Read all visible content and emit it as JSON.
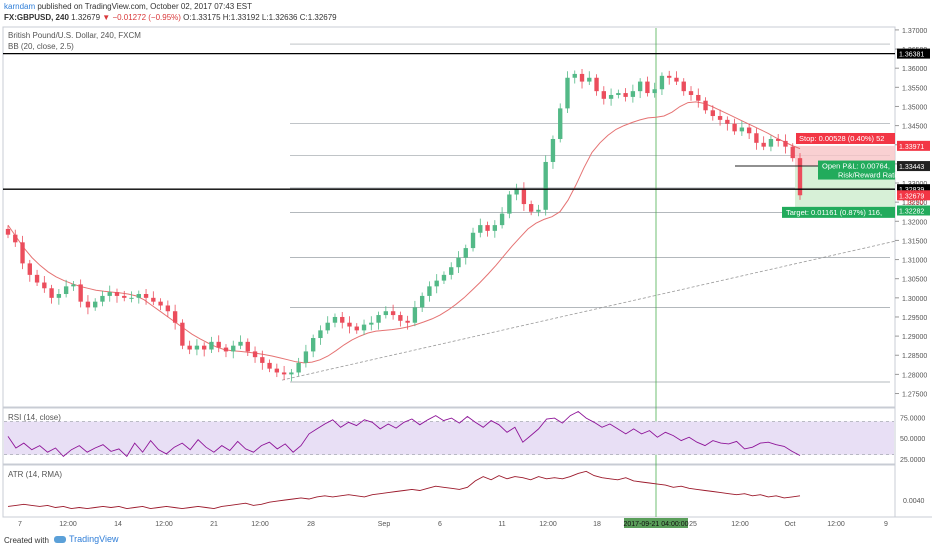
{
  "header": {
    "username": "karndam",
    "published_text": " published on TradingView.com, October 02, 2017 07:43 EST",
    "symbol": "FX:GBPUSD, 240",
    "last": "1.32679",
    "change": "▼ −0.01272 (−0.95%)",
    "ohlc": "O:1.33175 H:1.33192 L:1.32636 C:1.32679"
  },
  "chart_data": {
    "type": "candlestick",
    "title": "British Pound/U.S. Dollar, 240, FXCM",
    "indicator_label": "BB (20, close, 2.5)",
    "ylim": [
      1.272,
      1.3705
    ],
    "y_ticks": [
      "1.37000",
      "1.36500",
      "1.36000",
      "1.35500",
      "1.35000",
      "1.34500",
      "1.34000",
      "1.33500",
      "1.33000",
      "1.32500",
      "1.32000",
      "1.31500",
      "1.31000",
      "1.30500",
      "1.30000",
      "1.29500",
      "1.29000",
      "1.28500",
      "1.28000",
      "1.27500"
    ],
    "x_ticks": [
      "7",
      "12:00",
      "14",
      "12:00",
      "21",
      "12:00",
      "28",
      "Sep",
      "6",
      "11",
      "12:00",
      "18",
      "25",
      "12:00",
      "Oct",
      "12:00",
      "9"
    ],
    "close_path": [
      1.3165,
      1.3145,
      1.309,
      1.306,
      1.304,
      1.3025,
      1.3,
      1.301,
      1.303,
      1.3035,
      1.299,
      1.2975,
      1.299,
      1.3005,
      1.3015,
      1.3005,
      1.3,
      1.3,
      1.301,
      1.3,
      1.299,
      1.298,
      1.2965,
      1.2935,
      1.2875,
      1.2865,
      1.2875,
      1.2865,
      1.2885,
      1.287,
      1.286,
      1.2875,
      1.2885,
      1.286,
      1.2845,
      1.283,
      1.2815,
      1.2805,
      1.28,
      1.2805,
      1.283,
      1.286,
      1.2895,
      1.2915,
      1.2935,
      1.295,
      1.2935,
      1.2925,
      1.2915,
      1.293,
      1.2935,
      1.2955,
      1.2965,
      1.2955,
      1.294,
      1.2935,
      1.2975,
      1.3005,
      1.303,
      1.3045,
      1.306,
      1.308,
      1.3105,
      1.313,
      1.317,
      1.319,
      1.3175,
      1.319,
      1.322,
      1.327,
      1.3285,
      1.3245,
      1.3225,
      1.323,
      1.3355,
      1.3415,
      1.3495,
      1.3575,
      1.3585,
      1.3565,
      1.3575,
      1.354,
      1.352,
      1.353,
      1.3535,
      1.3525,
      1.354,
      1.3565,
      1.3535,
      1.3545,
      1.358,
      1.3575,
      1.3565,
      1.354,
      1.353,
      1.3515,
      1.349,
      1.3475,
      1.3465,
      1.3455,
      1.3435,
      1.3445,
      1.343,
      1.3405,
      1.3395,
      1.3415,
      1.341,
      1.3395,
      1.3365,
      1.3268
    ],
    "bb_basis": [
      1.319,
      1.316,
      1.313,
      1.3105,
      1.3085,
      1.3068,
      1.3055,
      1.3045,
      1.3037,
      1.303,
      1.3025,
      1.302,
      1.3017,
      1.3015,
      1.3013,
      1.301,
      1.3005,
      1.2995,
      1.298,
      1.2965,
      1.295,
      1.2935,
      1.292,
      1.2905,
      1.2893,
      1.2882,
      1.2872,
      1.2865,
      1.2862,
      1.286,
      1.2858,
      1.2855,
      1.2852,
      1.2848,
      1.2843,
      1.2838,
      1.2833,
      1.283,
      1.2832,
      1.2838,
      1.2848,
      1.2862,
      1.2877,
      1.289,
      1.29,
      1.2908,
      1.2913,
      1.2915,
      1.2917,
      1.292,
      1.2924,
      1.293,
      1.2937,
      1.2945,
      1.2955,
      1.2968,
      1.2983,
      1.3,
      1.302,
      1.304,
      1.3062,
      1.3085,
      1.311,
      1.3135,
      1.3158,
      1.318,
      1.3195,
      1.3205,
      1.3212,
      1.3225,
      1.3255,
      1.3295,
      1.334,
      1.338,
      1.3405,
      1.3425,
      1.344,
      1.345,
      1.3458,
      1.3465,
      1.347,
      1.3472,
      1.3475,
      1.3485,
      1.35,
      1.351,
      1.3512,
      1.3508,
      1.35,
      1.349,
      1.348,
      1.347,
      1.346,
      1.345,
      1.344,
      1.343,
      1.3418,
      1.3408,
      1.3398,
      1.339
    ],
    "annotations": {
      "stop_label": "Stop: 0.00528 (0.40%) 52",
      "stop_price": "1.33971",
      "open_pl": "Open P&L: 0.00764, ",
      "risk_reward": "Risk/Reward Rati",
      "entry_price": "1.33443",
      "target_label": "Target: 0.01161 (0.87%) 116,",
      "target_price": "1.32282",
      "line_price_top": "1.36381",
      "line_price_mid": "1.32839",
      "last_price": "1.32679",
      "countdown": "16:20"
    },
    "rsi": {
      "label": "RSI (14, close)",
      "ticks": [
        "75.0000",
        "50.0000",
        "25.0000"
      ],
      "ylim": [
        20,
        85
      ],
      "values": [
        52,
        38,
        44,
        36,
        41,
        33,
        38,
        28,
        36,
        41,
        33,
        38,
        42,
        34,
        37,
        28,
        44,
        33,
        47,
        36,
        31,
        39,
        44,
        36,
        48,
        39,
        33,
        41,
        35,
        46,
        37,
        33,
        41,
        45,
        37,
        43,
        33,
        41,
        55,
        61,
        67,
        72,
        63,
        69,
        65,
        72,
        69,
        61,
        67,
        62,
        69,
        73,
        66,
        72,
        77,
        71,
        74,
        68,
        76,
        69,
        63,
        71,
        66,
        57,
        63,
        45,
        53,
        61,
        73,
        74,
        68,
        77,
        82,
        74,
        69,
        63,
        67,
        61,
        55,
        61,
        55,
        59,
        51,
        57,
        53,
        47,
        51,
        45,
        41,
        47,
        44,
        43,
        46,
        37,
        39,
        44,
        45,
        42,
        40,
        34,
        29
      ]
    },
    "atr": {
      "label": "ATR (14, RMA)",
      "tick": "0.0040",
      "ylim": [
        0.0025,
        0.0072
      ],
      "values": [
        0.0034,
        0.0035,
        0.0036,
        0.0035,
        0.0034,
        0.0035,
        0.0033,
        0.0034,
        0.0032,
        0.0033,
        0.0032,
        0.0033,
        0.0034,
        0.0033,
        0.0034,
        0.0032,
        0.0033,
        0.0034,
        0.0032,
        0.0033,
        0.0034,
        0.0033,
        0.0032,
        0.0033,
        0.0034,
        0.0033,
        0.0032,
        0.0034,
        0.0035,
        0.0036,
        0.0037,
        0.0035,
        0.0036,
        0.0038,
        0.0039,
        0.004,
        0.0041,
        0.0042,
        0.0041,
        0.0043,
        0.0044,
        0.0043,
        0.0044,
        0.0045,
        0.0044,
        0.0043,
        0.0045,
        0.0046,
        0.0047,
        0.0048,
        0.0049,
        0.005,
        0.0049,
        0.0051,
        0.0053,
        0.0052,
        0.0051,
        0.005,
        0.0052,
        0.0058,
        0.0062,
        0.0059,
        0.0063,
        0.006,
        0.0062,
        0.0061,
        0.0059,
        0.0062,
        0.006,
        0.0061,
        0.006,
        0.0062,
        0.0065,
        0.0067,
        0.0063,
        0.0061,
        0.006,
        0.0059,
        0.0061,
        0.0058,
        0.0057,
        0.0056,
        0.0055,
        0.0054,
        0.0052,
        0.0053,
        0.0051,
        0.005,
        0.0049,
        0.0048,
        0.0047,
        0.0046,
        0.0045,
        0.0046,
        0.0044,
        0.0045,
        0.0043,
        0.0044,
        0.0042,
        0.0043,
        0.0044
      ]
    },
    "cursor_label": "2017-09-21 04:00:00"
  },
  "footer": {
    "created_with": "Created with",
    "brand": "TradingView"
  },
  "colors": {
    "up": "#53b987",
    "down": "#eb4d5c",
    "bb": "#e57373",
    "rsi_line": "#8e1599",
    "rsi_band": "#e8dff5",
    "atr_line": "#9c1a2c",
    "stop_zone": "#f7c4c7",
    "target_zone": "#cdeccd",
    "stop_box": "#f23645",
    "target_box": "#22ab5c",
    "brand": "#2f7ed8"
  }
}
